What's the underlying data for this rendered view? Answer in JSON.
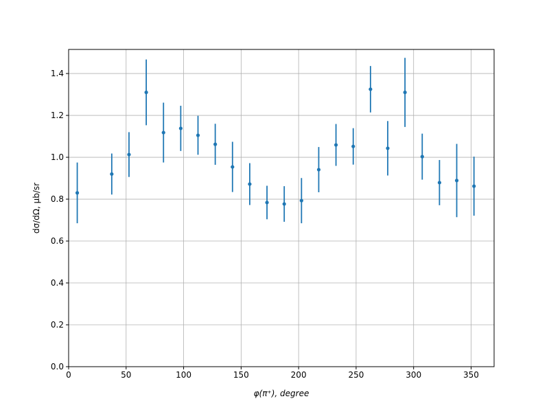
{
  "chart_data": {
    "type": "errorbar",
    "x_label": "φ(π⁺), degree",
    "y_label": "dσ/dΩ, μb/sr",
    "x": [
      7.5,
      37.5,
      52.5,
      67.5,
      82.5,
      97.5,
      112.5,
      127.5,
      142.5,
      157.5,
      172.5,
      187.5,
      202.5,
      217.5,
      232.5,
      247.5,
      262.5,
      277.5,
      292.5,
      307.5,
      322.5,
      337.5,
      352.5
    ],
    "series": [
      {
        "color": "#1f77b4",
        "values": [
          0.83,
          0.92,
          1.013,
          1.31,
          1.118,
          1.138,
          1.105,
          1.062,
          0.954,
          0.872,
          0.784,
          0.777,
          0.793,
          0.941,
          1.059,
          1.052,
          1.325,
          1.043,
          1.31,
          1.003,
          0.879,
          0.889,
          0.862
        ],
        "errors": [
          0.145,
          0.098,
          0.107,
          0.157,
          0.143,
          0.108,
          0.093,
          0.098,
          0.12,
          0.1,
          0.08,
          0.085,
          0.108,
          0.108,
          0.1,
          0.087,
          0.111,
          0.13,
          0.165,
          0.11,
          0.108,
          0.175,
          0.141
        ]
      }
    ],
    "xlim": [
      0,
      370
    ],
    "ylim": [
      0,
      1.515
    ],
    "xticks": [
      0,
      50,
      100,
      150,
      200,
      250,
      300,
      350
    ],
    "yticks": [
      {
        "value": 0,
        "label": "0.0"
      },
      {
        "value": 0.2,
        "label": "0.2"
      },
      {
        "value": 0.4,
        "label": "0.4"
      },
      {
        "value": 0.6,
        "label": "0.6"
      },
      {
        "value": 0.8,
        "label": "0.8"
      },
      {
        "value": 1,
        "label": "1.0"
      },
      {
        "value": 1.2,
        "label": "1.2"
      },
      {
        "value": 1.4,
        "label": "1.4"
      }
    ],
    "grid": true
  }
}
